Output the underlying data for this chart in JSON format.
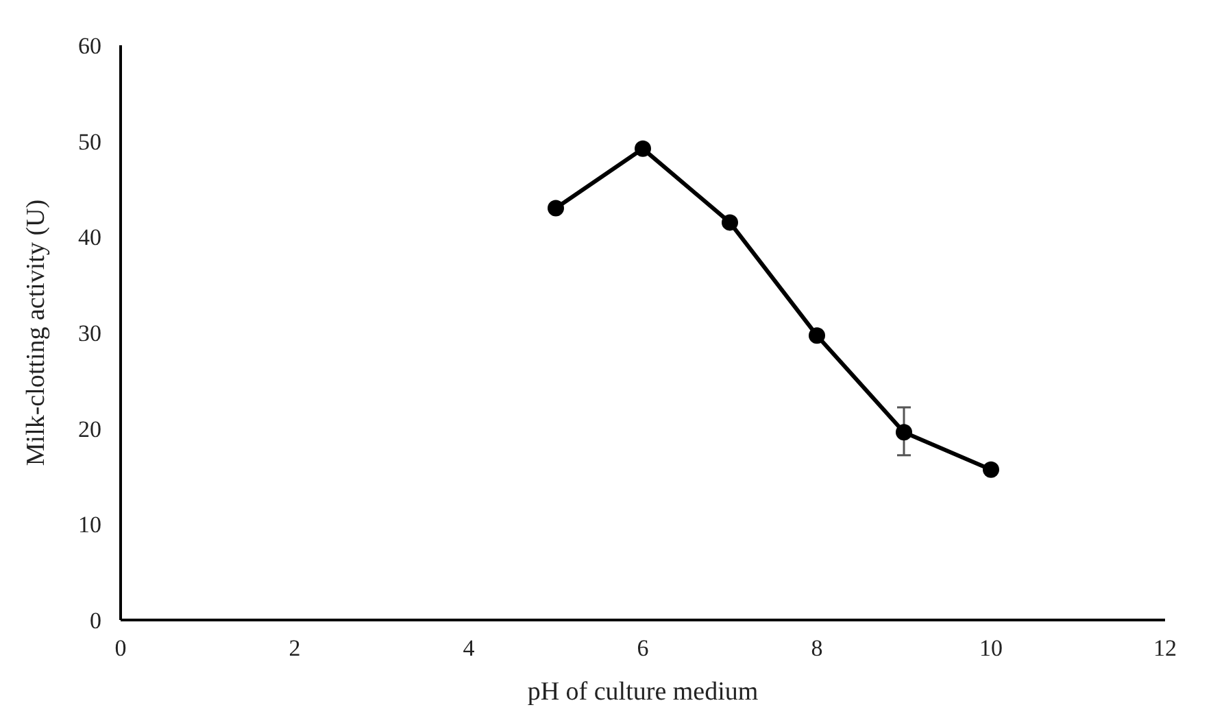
{
  "chart_data": {
    "type": "line",
    "xlabel": "pH of culture medium",
    "ylabel": "Milk-clotting activity  (U)",
    "x": [
      5,
      6,
      7,
      8,
      9,
      10
    ],
    "series": [
      {
        "color": "#000000",
        "values": [
          43,
          49.2,
          41.5,
          29.7,
          19.6,
          15.7
        ],
        "errors": [
          null,
          null,
          null,
          null,
          [
            17.2,
            22.2
          ],
          null
        ]
      }
    ],
    "xlim": [
      0,
      12
    ],
    "xticks": [
      0,
      2,
      4,
      6,
      8,
      10,
      12
    ],
    "ylim": [
      0,
      60
    ],
    "yticks": [
      0,
      10,
      20,
      30,
      40,
      50,
      60
    ],
    "marker": "circle",
    "line_style": "solid"
  }
}
